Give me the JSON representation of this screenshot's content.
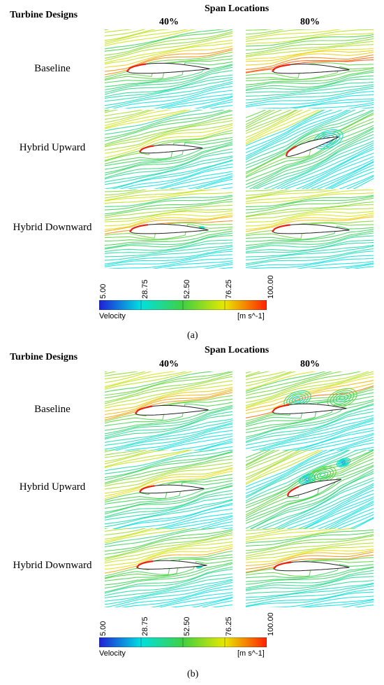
{
  "figure": {
    "parts": [
      {
        "caption": "(a)",
        "row_header": "Turbine Designs",
        "col_header": "Span Locations",
        "columns": [
          "40%",
          "80%"
        ],
        "rows": [
          "Baseline",
          "Hybrid Upward",
          "Hybrid Downward"
        ],
        "panels": [
          {
            "design": "Baseline",
            "span": "40%",
            "separation": "none"
          },
          {
            "design": "Baseline",
            "span": "80%",
            "separation": "none"
          },
          {
            "design": "Hybrid Upward",
            "span": "40%",
            "separation": "none"
          },
          {
            "design": "Hybrid Upward",
            "span": "80%",
            "separation": "large vortex above trailing edge"
          },
          {
            "design": "Hybrid Downward",
            "span": "40%",
            "separation": "small vortex near trailing edge"
          },
          {
            "design": "Hybrid Downward",
            "span": "80%",
            "separation": "none"
          }
        ]
      },
      {
        "caption": "(b)",
        "row_header": "Turbine Designs",
        "col_header": "Span Locations",
        "columns": [
          "40%",
          "80%"
        ],
        "rows": [
          "Baseline",
          "Hybrid Upward",
          "Hybrid Downward"
        ],
        "panels": [
          {
            "design": "Baseline",
            "span": "40%",
            "separation": "none"
          },
          {
            "design": "Baseline",
            "span": "80%",
            "separation": "large recirculation over suction side"
          },
          {
            "design": "Hybrid Upward",
            "span": "40%",
            "separation": "none"
          },
          {
            "design": "Hybrid Upward",
            "span": "80%",
            "separation": "double vortex above trailing edge"
          },
          {
            "design": "Hybrid Downward",
            "span": "40%",
            "separation": "small vortex near trailing edge"
          },
          {
            "design": "Hybrid Downward",
            "span": "80%",
            "separation": "none"
          }
        ]
      }
    ],
    "colorbar": {
      "label": "Velocity",
      "unit": "[m s^-1]",
      "ticks": [
        "5.00",
        "28.75",
        "52.50",
        "76.25",
        "100.00"
      ],
      "range": [
        5,
        100
      ],
      "colors": [
        "#1f1fd6",
        "#00e0e0",
        "#40d040",
        "#e8e800",
        "#ff2000"
      ]
    }
  }
}
